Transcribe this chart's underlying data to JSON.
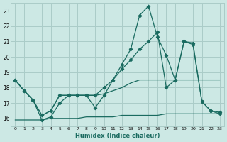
{
  "xlabel": "Humidex (Indice chaleur)",
  "bg_color": "#cce8e4",
  "grid_color": "#aaccc8",
  "line_color": "#1a6b60",
  "xlim": [
    -0.5,
    23.5
  ],
  "ylim": [
    15.5,
    23.5
  ],
  "yticks": [
    16,
    17,
    18,
    19,
    20,
    21,
    22,
    23
  ],
  "xticks": [
    0,
    1,
    2,
    3,
    4,
    5,
    6,
    7,
    8,
    9,
    10,
    11,
    12,
    13,
    14,
    15,
    16,
    17,
    18,
    19,
    20,
    21,
    22,
    23
  ],
  "line1_x": [
    0,
    1,
    2,
    3,
    4,
    5,
    6,
    7,
    8,
    9,
    10,
    11,
    12,
    13,
    14,
    15,
    16,
    17,
    18,
    19,
    20,
    21,
    22,
    23
  ],
  "line1_y": [
    18.5,
    17.8,
    17.2,
    15.9,
    16.1,
    17.0,
    17.5,
    17.5,
    17.5,
    16.7,
    17.5,
    18.5,
    19.5,
    20.5,
    22.7,
    23.3,
    21.3,
    20.1,
    18.5,
    21.0,
    20.9,
    17.1,
    16.5,
    16.4
  ],
  "line2_x": [
    0,
    1,
    2,
    3,
    4,
    5,
    6,
    7,
    8,
    9,
    10,
    11,
    12,
    13,
    14,
    15,
    16,
    17,
    18,
    19,
    20,
    21,
    22,
    23
  ],
  "line2_y": [
    18.5,
    17.8,
    17.2,
    16.2,
    16.5,
    17.5,
    17.5,
    17.5,
    17.5,
    17.5,
    18.0,
    18.5,
    19.2,
    19.8,
    20.5,
    21.0,
    21.6,
    18.0,
    18.5,
    21.0,
    20.8,
    17.1,
    16.5,
    16.3
  ],
  "line3_x": [
    0,
    1,
    2,
    3,
    4,
    5,
    6,
    7,
    8,
    9,
    10,
    11,
    12,
    13,
    14,
    15,
    16,
    17,
    18,
    19,
    20,
    21,
    22,
    23
  ],
  "line3_y": [
    18.5,
    17.8,
    17.2,
    16.2,
    16.5,
    17.5,
    17.5,
    17.5,
    17.5,
    17.5,
    17.6,
    17.8,
    18.0,
    18.3,
    18.5,
    18.5,
    18.5,
    18.5,
    18.5,
    18.5,
    18.5,
    18.5,
    18.5,
    18.5
  ],
  "line4_x": [
    0,
    1,
    2,
    3,
    4,
    5,
    6,
    7,
    8,
    9,
    10,
    11,
    12,
    13,
    14,
    15,
    16,
    17,
    18,
    19,
    20,
    21,
    22,
    23
  ],
  "line4_y": [
    15.9,
    15.9,
    15.9,
    15.9,
    16.0,
    16.0,
    16.0,
    16.0,
    16.1,
    16.1,
    16.1,
    16.1,
    16.2,
    16.2,
    16.2,
    16.2,
    16.2,
    16.3,
    16.3,
    16.3,
    16.3,
    16.3,
    16.3,
    16.3
  ]
}
